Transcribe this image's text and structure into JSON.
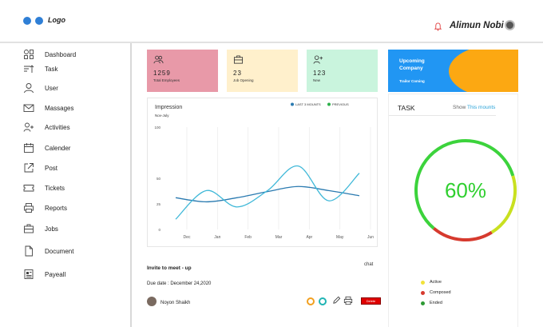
{
  "header": {
    "logo": "Logo",
    "user_name": "Alimun Nobi",
    "icons": [
      "bell-icon",
      "user-avatar"
    ]
  },
  "sidebar": {
    "items": [
      {
        "label": "Dashboard",
        "icon": "dashboard-icon"
      },
      {
        "label": "Task",
        "icon": "task-sort-icon"
      },
      {
        "label": "User",
        "icon": "user-icon"
      },
      {
        "label": "Massages",
        "icon": "mail-icon"
      },
      {
        "label": "Activities",
        "icon": "user-plus-icon"
      },
      {
        "label": "Calender",
        "icon": "calendar-icon"
      },
      {
        "label": "Post",
        "icon": "external-link-icon"
      },
      {
        "label": "Tickets",
        "icon": "ticket-icon"
      },
      {
        "label": "Reports",
        "icon": "printer-icon"
      },
      {
        "label": "Jobs",
        "icon": "briefcase-icon"
      },
      {
        "label": "Document",
        "icon": "file-icon"
      },
      {
        "label": "Payeall",
        "icon": "newspaper-icon"
      }
    ]
  },
  "cards": [
    {
      "value": "1259",
      "caption": "Total Employees",
      "color": "#e899a8",
      "icon": "users-icon"
    },
    {
      "value": "23",
      "caption": "Job Opening",
      "color": "#fff0cc",
      "icon": "briefcase-icon"
    },
    {
      "value": "123",
      "caption": "New",
      "color": "#c9f4dd",
      "icon": "user-plus-icon"
    }
  ],
  "upcoming": {
    "title": "Upcoming Company",
    "subtitle": "Trailor Coming",
    "colors": {
      "left": "#2196f3",
      "right": "#fca812"
    }
  },
  "impression": {
    "title": "Impression",
    "range": "Nov-July",
    "legend": [
      {
        "label": "LAST 3 MOUNTS",
        "color": "#2a7ab0"
      },
      {
        "label": "PREVIOUS",
        "color": "#2db04a"
      }
    ]
  },
  "chart_data": {
    "type": "line",
    "x": [
      "Dec",
      "Jan",
      "Feb",
      "Mar",
      "Apr",
      "May",
      "Jun"
    ],
    "yticks": [
      0,
      25,
      50,
      100
    ],
    "ylim": [
      0,
      100
    ],
    "grid": true,
    "series": [
      {
        "name": "LAST 3 MOUNTS",
        "color": "#2a7ab0",
        "points": [
          [
            0,
            31
          ],
          [
            1,
            27
          ],
          [
            2,
            31
          ],
          [
            3,
            37
          ],
          [
            4,
            42
          ],
          [
            5,
            38
          ],
          [
            6,
            33
          ]
        ]
      },
      {
        "name": "PREVIOUS",
        "color": "#3fb8d8",
        "points": [
          [
            0,
            10
          ],
          [
            1,
            38
          ],
          [
            2,
            22
          ],
          [
            3,
            38
          ],
          [
            4,
            62
          ],
          [
            5,
            28
          ],
          [
            6,
            55
          ]
        ]
      }
    ]
  },
  "task": {
    "title": "TASK",
    "show_label": "Show",
    "show_link": "This mounts",
    "percent": 0.6,
    "percent_label": "60%",
    "colors": {
      "active": "#3cd33c",
      "composed": "#c9e020",
      "ended": "#d63a2e"
    },
    "legend": [
      {
        "label": "Active",
        "color": "#f2e23a"
      },
      {
        "label": "Composed",
        "color": "#d63a2e"
      },
      {
        "label": "Ended",
        "color": "#2e9a34"
      }
    ]
  },
  "meeting": {
    "title": "Invite to meet - up",
    "chat_label": "chat",
    "due": "Due date : December 24,2020",
    "person": "Noyon  Shaikh",
    "delete_label": "Delete",
    "icons": [
      "status-ring-orange",
      "status-ring-teal",
      "pencil-icon",
      "printer-icon"
    ]
  }
}
